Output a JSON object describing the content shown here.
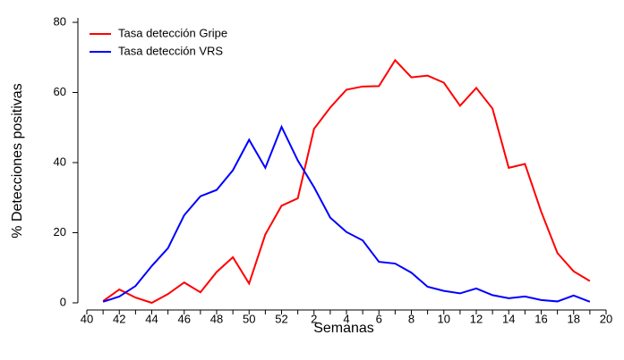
{
  "chart_data": {
    "type": "line",
    "x_label": "Semanas",
    "y_label": "% Detecciones positivas",
    "categories": [
      "40",
      null,
      "42",
      null,
      "44",
      null,
      "46",
      null,
      "48",
      null,
      "50",
      null,
      "52",
      null,
      "2",
      null,
      "4",
      null,
      "6",
      null,
      "8",
      null,
      "10",
      null,
      "12",
      null,
      "14",
      null,
      "16",
      null,
      "18",
      null,
      "20"
    ],
    "series": [
      {
        "name": "Tasa detección Gripe",
        "color": "#ff0000",
        "values": [
          null,
          0.5,
          3.8,
          1.5,
          0,
          2.5,
          5.8,
          3,
          8.8,
          13,
          5.5,
          19.5,
          27.7,
          29.8,
          49.6,
          55.7,
          60.8,
          61.7,
          61.8,
          69.2,
          64.3,
          64.8,
          62.8,
          56.2,
          61.3,
          55.4,
          38.5,
          39.6,
          26,
          14.2,
          9,
          6.2,
          null
        ]
      },
      {
        "name": "Tasa detección VRS",
        "color": "#0000ff",
        "values": [
          null,
          0.3,
          1.8,
          4.8,
          10.5,
          15.6,
          25,
          30.4,
          32.2,
          37.8,
          46.5,
          38.5,
          50.2,
          40.6,
          33,
          24.3,
          20.2,
          17.8,
          11.7,
          11.2,
          8.6,
          4.6,
          3.4,
          2.7,
          4.1,
          2.2,
          1.3,
          1.8,
          0.8,
          0.4,
          2.1,
          0.3,
          null
        ]
      }
    ],
    "ylim": [
      0,
      80
    ],
    "yticks": [
      0,
      20,
      40,
      60,
      80
    ],
    "legend": "upper-left"
  }
}
